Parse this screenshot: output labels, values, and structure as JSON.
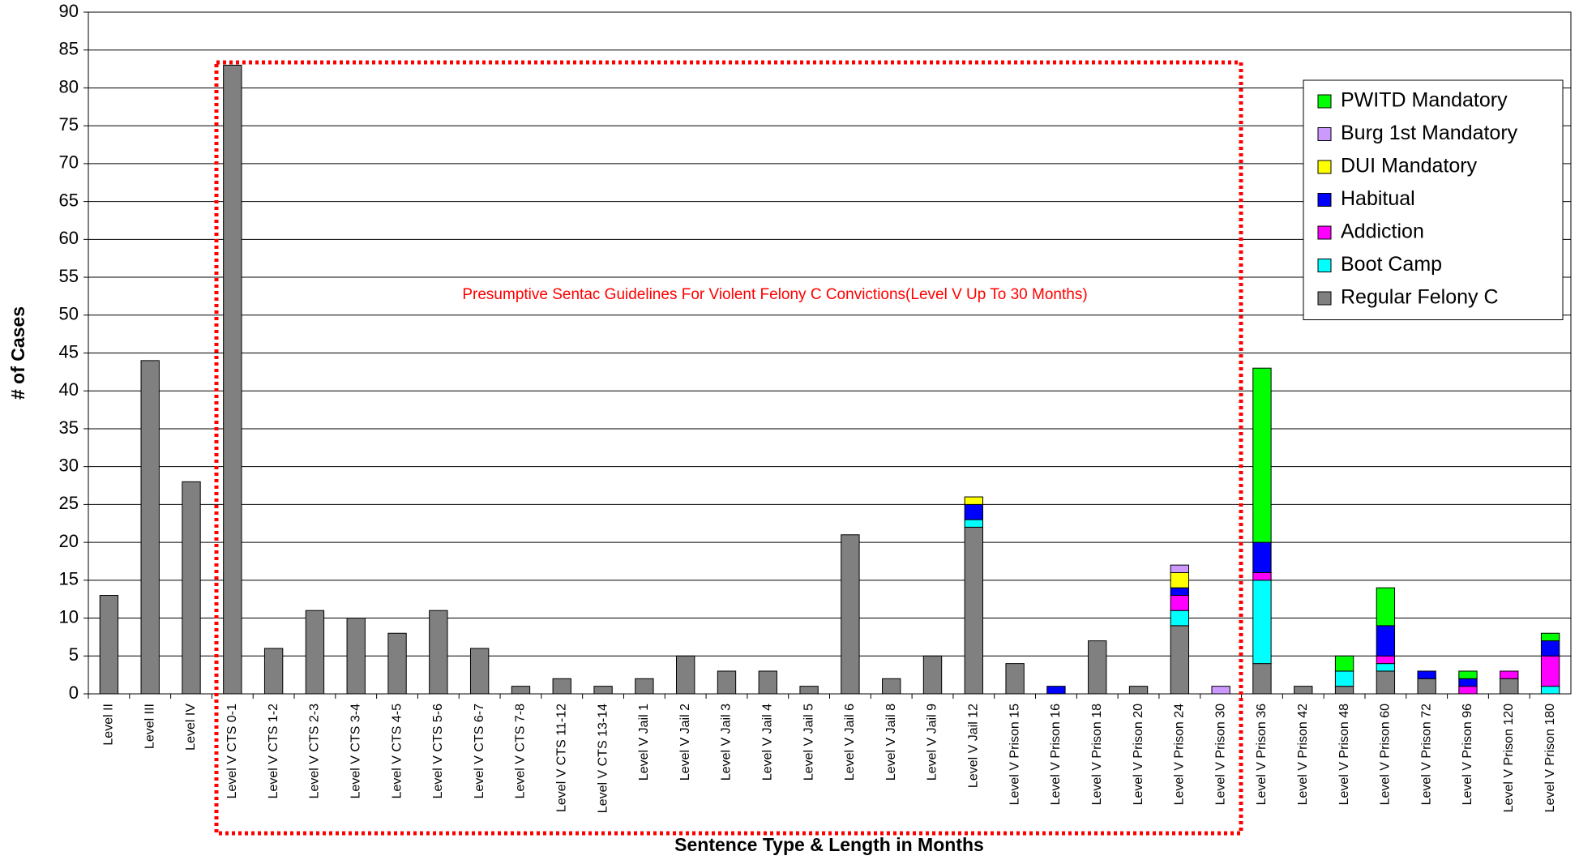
{
  "chart_data": {
    "type": "stacked_bar",
    "x_label": "Sentence Type & Length in Months",
    "y_label": "# of Cases",
    "annotation": "Presumptive Sentac Guidelines For Violent Felony C Convictions(Level V Up To 30 Months)",
    "categories": [
      "Level II",
      "Level III",
      "Level IV",
      "Level V CTS 0-1",
      "Level V CTS 1-2",
      "Level V CTS 2-3",
      "Level V CTS 3-4",
      "Level V CTS 4-5",
      "Level V CTS 5-6",
      "Level V CTS 6-7",
      "Level V CTS 7-8",
      "Level V CTS 11-12",
      "Level V CTS 13-14",
      "Level V Jail 1",
      "Level V Jail 2",
      "Level V Jail 3",
      "Level V Jail 4",
      "Level V Jail 5",
      "Level V Jail 6",
      "Level V Jail 8",
      "Level V Jail 9",
      "Level V Jail 12",
      "Level V Prison 15",
      "Level V Prison 16",
      "Level V Prison 18",
      "Level V Prison 20",
      "Level V Prison 24",
      "Level V Prison 30",
      "Level V Prison 36",
      "Level V Prison 42",
      "Level V Prison 48",
      "Level V Prison 60",
      "Level V Prison 72",
      "Level V Prison 96",
      "Level V Prison 120",
      "Level V Prison 180"
    ],
    "series": [
      {
        "name": "Regular Felony C",
        "color": "#808080",
        "values": [
          13,
          44,
          28,
          83,
          6,
          11,
          10,
          8,
          11,
          6,
          1,
          2,
          1,
          2,
          5,
          3,
          3,
          1,
          21,
          2,
          5,
          22,
          4,
          0,
          7,
          1,
          9,
          0,
          4,
          1,
          1,
          3,
          2,
          0,
          2,
          0
        ]
      },
      {
        "name": "Boot Camp",
        "color": "#00ffff",
        "values": [
          0,
          0,
          0,
          0,
          0,
          0,
          0,
          0,
          0,
          0,
          0,
          0,
          0,
          0,
          0,
          0,
          0,
          0,
          0,
          0,
          0,
          1,
          0,
          0,
          0,
          0,
          2,
          0,
          11,
          0,
          2,
          1,
          0,
          0,
          0,
          1
        ]
      },
      {
        "name": "Addiction",
        "color": "#ff00ff",
        "values": [
          0,
          0,
          0,
          0,
          0,
          0,
          0,
          0,
          0,
          0,
          0,
          0,
          0,
          0,
          0,
          0,
          0,
          0,
          0,
          0,
          0,
          0,
          0,
          0,
          0,
          0,
          2,
          0,
          1,
          0,
          0,
          1,
          0,
          1,
          1,
          4
        ]
      },
      {
        "name": "Habitual",
        "color": "#0000ff",
        "values": [
          0,
          0,
          0,
          0,
          0,
          0,
          0,
          0,
          0,
          0,
          0,
          0,
          0,
          0,
          0,
          0,
          0,
          0,
          0,
          0,
          0,
          2,
          0,
          1,
          0,
          0,
          1,
          0,
          4,
          0,
          0,
          4,
          1,
          1,
          0,
          2
        ]
      },
      {
        "name": "DUI Mandatory",
        "color": "#ffff00",
        "values": [
          0,
          0,
          0,
          0,
          0,
          0,
          0,
          0,
          0,
          0,
          0,
          0,
          0,
          0,
          0,
          0,
          0,
          0,
          0,
          0,
          0,
          1,
          0,
          0,
          0,
          0,
          2,
          0,
          0,
          0,
          0,
          0,
          0,
          0,
          0,
          0
        ]
      },
      {
        "name": "Burg 1st Mandatory",
        "color": "#cc99ff",
        "values": [
          0,
          0,
          0,
          0,
          0,
          0,
          0,
          0,
          0,
          0,
          0,
          0,
          0,
          0,
          0,
          0,
          0,
          0,
          0,
          0,
          0,
          0,
          0,
          0,
          0,
          0,
          1,
          1,
          0,
          0,
          0,
          0,
          0,
          0,
          0,
          0
        ]
      },
      {
        "name": "PWITD Mandatory",
        "color": "#00ff00",
        "values": [
          0,
          0,
          0,
          0,
          0,
          0,
          0,
          0,
          0,
          0,
          0,
          0,
          0,
          0,
          0,
          0,
          0,
          0,
          0,
          0,
          0,
          0,
          0,
          0,
          0,
          0,
          0,
          0,
          23,
          0,
          2,
          5,
          0,
          1,
          0,
          1
        ]
      }
    ],
    "ylim": [
      0,
      90
    ],
    "yticks": [
      0,
      5,
      10,
      15,
      20,
      25,
      30,
      35,
      40,
      45,
      50,
      55,
      60,
      65,
      70,
      75,
      80,
      85,
      90
    ],
    "grid": true,
    "legend": "upper right"
  }
}
